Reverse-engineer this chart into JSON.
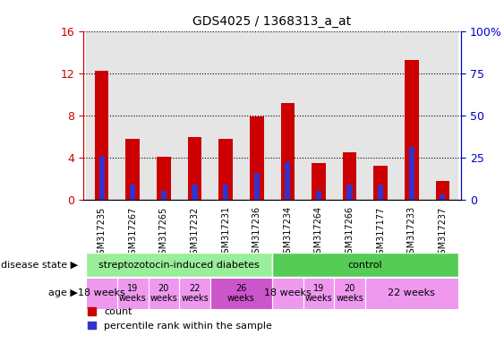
{
  "title": "GDS4025 / 1368313_a_at",
  "samples": [
    "GSM317235",
    "GSM317267",
    "GSM317265",
    "GSM317232",
    "GSM317231",
    "GSM317236",
    "GSM317234",
    "GSM317264",
    "GSM317266",
    "GSM317177",
    "GSM317233",
    "GSM317237"
  ],
  "counts": [
    12.2,
    5.8,
    4.1,
    5.9,
    5.8,
    7.9,
    9.2,
    3.5,
    4.5,
    3.2,
    13.2,
    1.8
  ],
  "percentiles": [
    26,
    9,
    5,
    9,
    9,
    16,
    22,
    5,
    9,
    9,
    31,
    3
  ],
  "ylim": [
    0,
    16
  ],
  "y2lim": [
    0,
    100
  ],
  "yticks": [
    0,
    4,
    8,
    12,
    16
  ],
  "y2ticks": [
    0,
    25,
    50,
    75,
    100
  ],
  "bar_color": "#cc0000",
  "percentile_color": "#3333cc",
  "bar_width": 0.45,
  "perc_bar_width": 0.18,
  "legend_count_label": "count",
  "legend_percentile_label": "percentile rank within the sample",
  "label_disease_state": "disease state",
  "label_age": "age",
  "tick_color_left": "#cc0000",
  "tick_color_right": "#0000cc",
  "col_bg": "#cccccc",
  "disease_color_1": "#99ee99",
  "disease_color_2": "#55cc55",
  "age_color_light": "#ee99ee",
  "age_color_dark": "#cc55cc"
}
